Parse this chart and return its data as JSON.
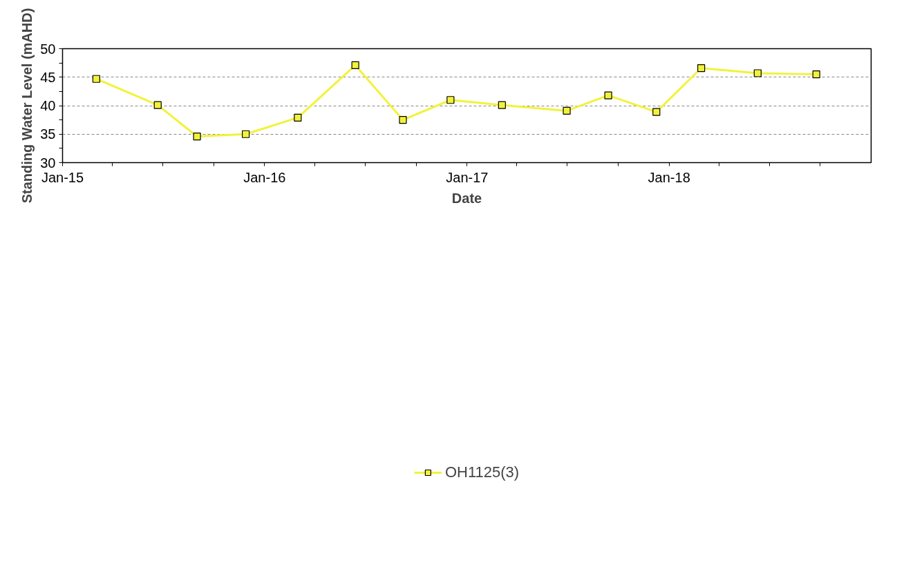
{
  "chart_data": {
    "type": "line",
    "xlabel": "Date",
    "ylabel": "Standing Water Level (mAHD)",
    "x": [
      "2015-03-03",
      "2015-06-22",
      "2015-09-01",
      "2015-11-28",
      "2016-03-01",
      "2016-06-13",
      "2016-09-07",
      "2016-12-02",
      "2017-03-05",
      "2017-06-30",
      "2017-09-13",
      "2017-12-09",
      "2018-02-28",
      "2018-06-10",
      "2018-09-24"
    ],
    "series": [
      {
        "name": "OH1125(3)",
        "color": "#f2f23a",
        "values": [
          44.7,
          40.1,
          34.6,
          35.0,
          37.9,
          47.1,
          37.5,
          41.0,
          40.1,
          39.1,
          41.8,
          38.9,
          46.6,
          45.7,
          45.5
        ]
      }
    ],
    "xlim": [
      "2015-01-01",
      "2019-01-01"
    ],
    "xticks": [
      {
        "value": "2015-01-01",
        "label": "Jan-15"
      },
      {
        "value": "2015-04-01",
        "label": null
      },
      {
        "value": "2015-07-01",
        "label": null
      },
      {
        "value": "2015-10-01",
        "label": null
      },
      {
        "value": "2016-01-01",
        "label": "Jan-16"
      },
      {
        "value": "2016-04-01",
        "label": null
      },
      {
        "value": "2016-07-01",
        "label": null
      },
      {
        "value": "2016-10-01",
        "label": null
      },
      {
        "value": "2017-01-01",
        "label": "Jan-17"
      },
      {
        "value": "2017-04-01",
        "label": null
      },
      {
        "value": "2017-07-01",
        "label": null
      },
      {
        "value": "2017-10-01",
        "label": null
      },
      {
        "value": "2018-01-01",
        "label": "Jan-18"
      },
      {
        "value": "2018-04-01",
        "label": null
      },
      {
        "value": "2018-07-01",
        "label": null
      },
      {
        "value": "2018-10-01",
        "label": null
      }
    ],
    "ylim": [
      30,
      50
    ],
    "yticks": [
      30,
      {
        "value": 32.5,
        "label": null
      },
      35,
      {
        "value": 37.5,
        "label": null
      },
      40,
      {
        "value": 42.5,
        "label": null
      },
      45,
      {
        "value": 47.5,
        "label": null
      },
      50
    ],
    "grid": "y",
    "legend": "bottom",
    "marker": "square",
    "line_style": "solid"
  }
}
